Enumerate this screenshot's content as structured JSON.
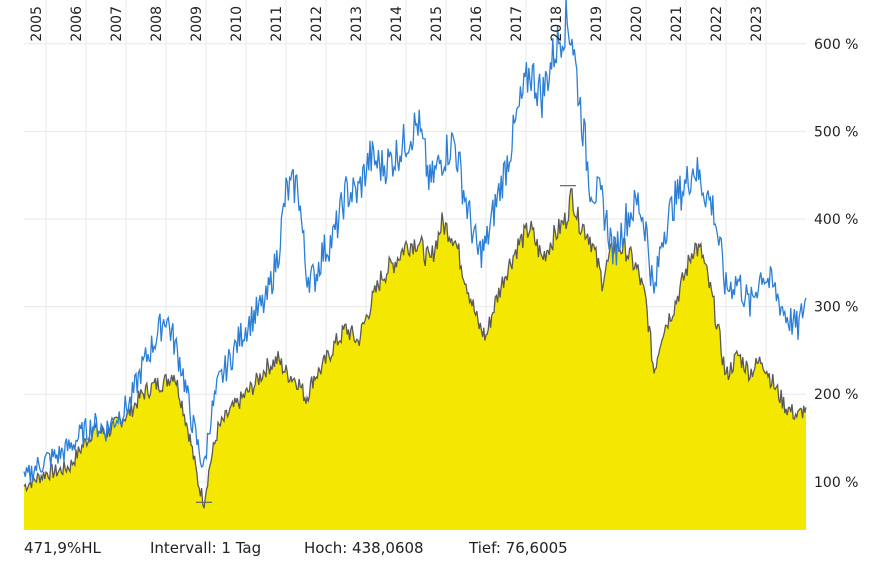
{
  "chart_data": {
    "type": "area",
    "title": "",
    "xlabel": "",
    "ylabel": "",
    "x_range": [
      2004.45,
      2024.0
    ],
    "ylim": [
      45,
      650
    ],
    "y_ticks": [
      100,
      200,
      300,
      400,
      500,
      600
    ],
    "y_tick_labels": [
      "100 %",
      "200 %",
      "300 %",
      "400 %",
      "500 %",
      "600 %"
    ],
    "year_labels": [
      "2005",
      "2006",
      "2007",
      "2008",
      "2009",
      "2010",
      "2011",
      "2012",
      "2013",
      "2014",
      "2015",
      "2016",
      "2017",
      "2018",
      "2019",
      "2020",
      "2021",
      "2022",
      "2023"
    ],
    "grid": true,
    "colors": {
      "area_fill": "#f5e800",
      "area_line": "#5a5a5a",
      "compare_line": "#2c7fd6",
      "grid": "#e8e8e8"
    },
    "series": [
      {
        "style": "area",
        "x": [
          2004.45,
          2004.7,
          2005.0,
          2005.3,
          2005.6,
          2005.9,
          2006.2,
          2006.5,
          2006.8,
          2007.1,
          2007.4,
          2007.7,
          2008.0,
          2008.2,
          2008.4,
          2008.6,
          2008.8,
          2008.95,
          2009.1,
          2009.3,
          2009.6,
          2009.9,
          2010.2,
          2010.5,
          2010.8,
          2011.0,
          2011.3,
          2011.5,
          2011.7,
          2011.9,
          2012.2,
          2012.5,
          2012.8,
          2013.1,
          2013.4,
          2013.7,
          2014.0,
          2014.3,
          2014.6,
          2014.9,
          2015.2,
          2015.5,
          2015.8,
          2016.0,
          2016.2,
          2016.5,
          2016.8,
          2017.1,
          2017.4,
          2017.7,
          2018.0,
          2018.15,
          2018.3,
          2018.6,
          2018.9,
          2019.2,
          2019.5,
          2019.8,
          2020.0,
          2020.2,
          2020.4,
          2020.7,
          2021.0,
          2021.2,
          2021.4,
          2021.7,
          2022.0,
          2022.3,
          2022.6,
          2022.9,
          2023.2,
          2023.5,
          2023.8,
          2024.0
        ],
        "values": [
          95,
          102,
          110,
          112,
          118,
          140,
          160,
          155,
          168,
          180,
          200,
          210,
          215,
          225,
          190,
          150,
          100,
          77,
          120,
          160,
          180,
          195,
          210,
          230,
          240,
          225,
          215,
          195,
          220,
          230,
          255,
          275,
          260,
          300,
          335,
          350,
          370,
          375,
          350,
          395,
          380,
          330,
          280,
          265,
          300,
          340,
          370,
          390,
          355,
          380,
          400,
          430,
          400,
          380,
          330,
          370,
          365,
          340,
          305,
          225,
          270,
          300,
          340,
          370,
          360,
          300,
          220,
          245,
          225,
          240,
          210,
          185,
          175,
          185
        ]
      },
      {
        "style": "line",
        "x": [
          2004.45,
          2004.7,
          2005.0,
          2005.3,
          2005.6,
          2005.9,
          2006.2,
          2006.5,
          2006.8,
          2007.1,
          2007.4,
          2007.7,
          2008.0,
          2008.2,
          2008.4,
          2008.6,
          2008.8,
          2008.95,
          2009.1,
          2009.3,
          2009.6,
          2009.9,
          2010.2,
          2010.5,
          2010.8,
          2011.0,
          2011.3,
          2011.5,
          2011.7,
          2011.9,
          2012.2,
          2012.5,
          2012.8,
          2013.1,
          2013.4,
          2013.7,
          2014.0,
          2014.3,
          2014.6,
          2014.9,
          2015.2,
          2015.5,
          2015.8,
          2016.0,
          2016.2,
          2016.5,
          2016.8,
          2017.1,
          2017.4,
          2017.7,
          2018.0,
          2018.15,
          2018.3,
          2018.6,
          2018.9,
          2019.2,
          2019.5,
          2019.8,
          2020.0,
          2020.2,
          2020.4,
          2020.7,
          2021.0,
          2021.2,
          2021.4,
          2021.7,
          2022.0,
          2022.3,
          2022.6,
          2022.9,
          2023.2,
          2023.5,
          2023.8,
          2024.0
        ],
        "values": [
          100,
          115,
          125,
          130,
          140,
          155,
          165,
          160,
          175,
          190,
          230,
          260,
          290,
          260,
          230,
          180,
          140,
          115,
          170,
          210,
          240,
          270,
          290,
          305,
          360,
          430,
          440,
          340,
          330,
          360,
          380,
          430,
          430,
          470,
          460,
          470,
          490,
          510,
          440,
          470,
          490,
          420,
          360,
          370,
          410,
          460,
          520,
          570,
          540,
          590,
          625,
          610,
          550,
          440,
          420,
          360,
          400,
          420,
          390,
          310,
          380,
          420,
          440,
          460,
          440,
          410,
          320,
          330,
          300,
          340,
          320,
          290,
          275,
          310
        ]
      }
    ],
    "annotations": [
      {
        "label": "high",
        "x": 2018.05,
        "value": 438.06
      },
      {
        "label": "low",
        "x": 2008.95,
        "value": 76.6
      }
    ]
  },
  "footer": {
    "change": "471,9%HL",
    "interval": "Intervall: 1 Tag",
    "high": "Hoch: 438,0608",
    "low": "Tief: 76,6005"
  }
}
